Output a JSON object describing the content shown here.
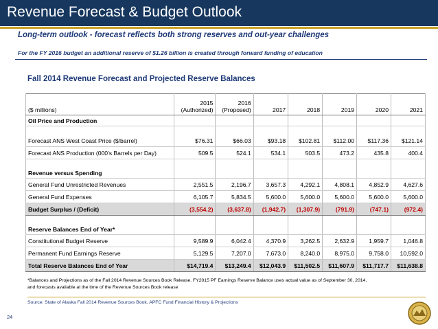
{
  "header": {
    "title": "Revenue Forecast & Budget Outlook"
  },
  "subtitle": "Long-term outlook - forecast reflects both strong reserves and out-year challenges",
  "note": "For the FY 2016 budget an additional reserve of $1.26 billion is created through forward funding of education",
  "table": {
    "title": "Fall 2014 Revenue Forecast and Projected Reserve Balances",
    "columns": [
      [
        "($ millions)"
      ],
      [
        "2015",
        "(Authorized)"
      ],
      [
        "2016",
        "(Proposed)"
      ],
      [
        "2017"
      ],
      [
        "2018"
      ],
      [
        "2019"
      ],
      [
        "2020"
      ],
      [
        "2021"
      ]
    ],
    "rows": [
      {
        "kind": "section",
        "cells": [
          "Oil Price and Production"
        ]
      },
      {
        "kind": "data",
        "cells": [
          "Forecast ANS West Coast Price ($/barrel)",
          "$76.31",
          "$66.03",
          "$93.18",
          "$102.81",
          "$112.00",
          "$117.36",
          "$121.14"
        ]
      },
      {
        "kind": "data",
        "cells": [
          "Forecast ANS Production (000's Barrels per Day)",
          "509.5",
          "524.1",
          "534.1",
          "503.5",
          "473.2",
          "435.8",
          "400.4"
        ]
      },
      {
        "kind": "section",
        "cells": [
          "Revenue versus Spending"
        ]
      },
      {
        "kind": "data",
        "cells": [
          "General Fund Unrestricted Revenues",
          "2,551.5",
          "2,196.7",
          "3,657.3",
          "4,292.1",
          "4,808.1",
          "4,852.9",
          "4,627.6"
        ]
      },
      {
        "kind": "data",
        "cells": [
          "General Fund Expenses",
          "6,105.7",
          "5,834.5",
          "5,600.0",
          "5,600.0",
          "5,600.0",
          "5,600.0",
          "5,600.0"
        ]
      },
      {
        "kind": "subtotal",
        "cells": [
          "Budget Surplus / (Deficit)",
          "(3,554.2)",
          "(3,637.8)",
          "(1,942.7)",
          "(1,307.9)",
          "(791.9)",
          "(747.1)",
          "(972.4)"
        ]
      },
      {
        "kind": "section",
        "cells": [
          "Reserve Balances End of Year*"
        ]
      },
      {
        "kind": "data",
        "cells": [
          "Constitutional Budget Reserve",
          "9,589.9",
          "6,042.4",
          "4,370.9",
          "3,262.5",
          "2,632.9",
          "1,959.7",
          "1,046.8"
        ]
      },
      {
        "kind": "data",
        "cells": [
          "Permanent Fund Earnings Reserve",
          "5,129.5",
          "7,207.0",
          "7,673.0",
          "8,240.0",
          "8,975.0",
          "9,758.0",
          "10,592.0"
        ]
      },
      {
        "kind": "total",
        "cells": [
          "Total Reserve Balances End of Year",
          "$14,719.4",
          "$13,249.4",
          "$12,043.9",
          "$11,502.5",
          "$11,607.9",
          "$11,717.7",
          "$11,638.8"
        ]
      }
    ]
  },
  "footnote": [
    "*Balances and Projections as of the Fall 2014 Revenue Sources Book Release.  FY2015 PF Earnings Reserve Balance uses actual value as of September 30, 2014,",
    "and forecasts available at the time of the Revenue Sources Book release"
  ],
  "source": "Source:  State of Alaska Fall 2014 Revenue Sources Book, APFC Fund Financial History & Projections",
  "page_number": "24"
}
